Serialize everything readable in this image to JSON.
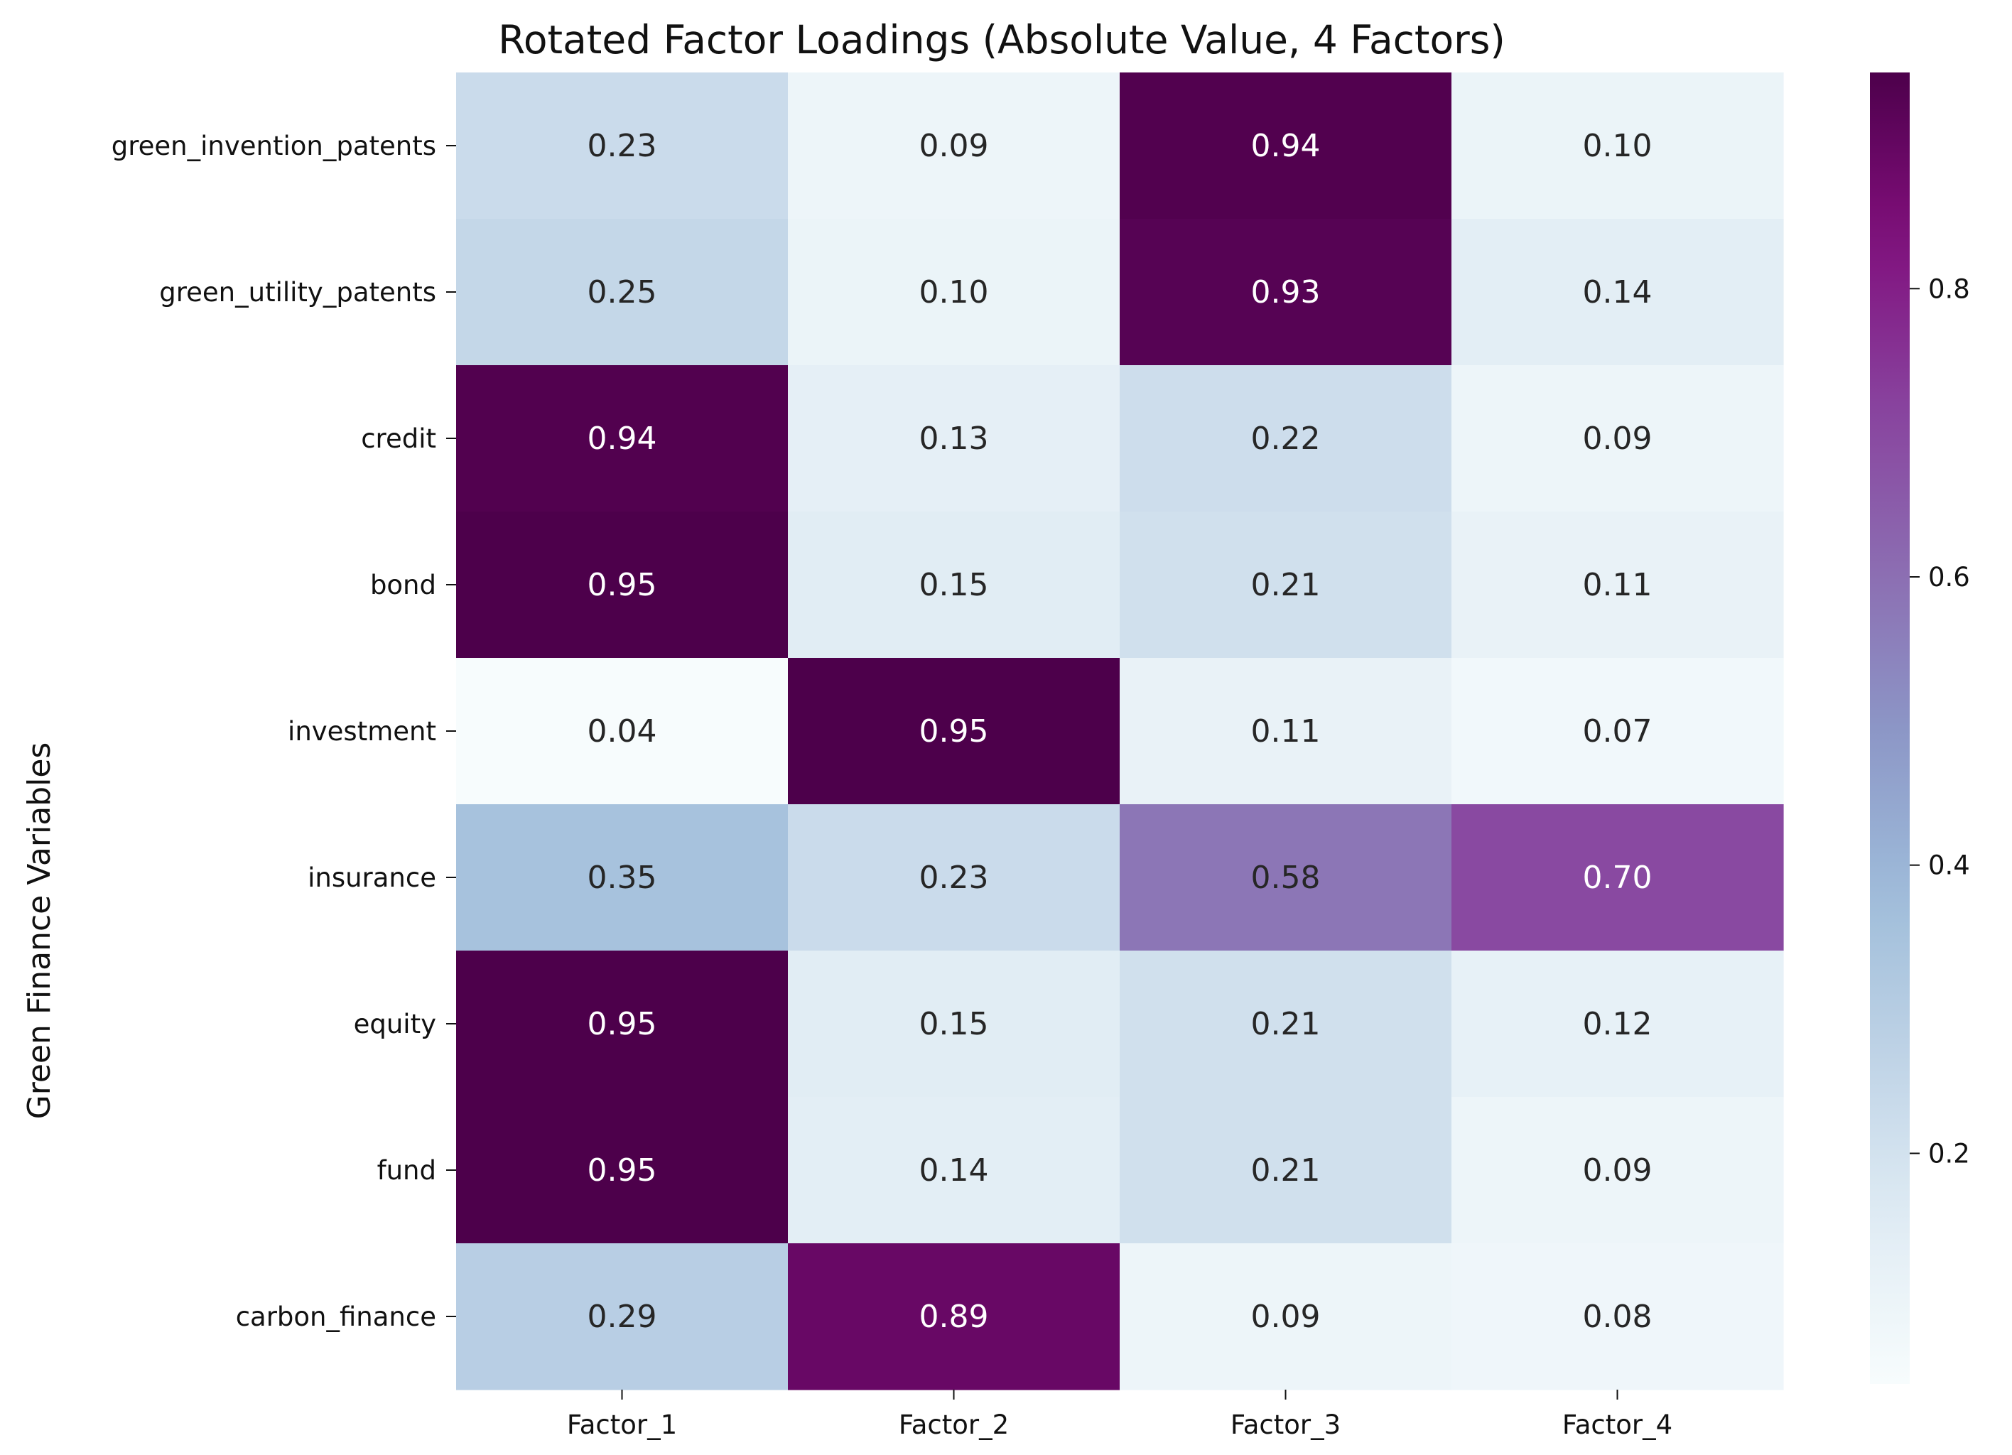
{
  "chart_data": {
    "type": "heatmap",
    "title": "Rotated Factor Loadings (Absolute Value, 4 Factors)",
    "xlabel": "",
    "ylabel": "Green Finance Variables",
    "columns": [
      "Factor_1",
      "Factor_2",
      "Factor_3",
      "Factor_4"
    ],
    "rows": [
      "green_invention_patents",
      "green_utility_patents",
      "credit",
      "bond",
      "investment",
      "insurance",
      "equity",
      "fund",
      "carbon_finance"
    ],
    "values": [
      [
        0.23,
        0.09,
        0.94,
        0.1
      ],
      [
        0.25,
        0.1,
        0.93,
        0.14
      ],
      [
        0.94,
        0.13,
        0.22,
        0.09
      ],
      [
        0.95,
        0.15,
        0.21,
        0.11
      ],
      [
        0.04,
        0.95,
        0.11,
        0.07
      ],
      [
        0.35,
        0.23,
        0.58,
        0.7
      ],
      [
        0.95,
        0.15,
        0.21,
        0.12
      ],
      [
        0.95,
        0.14,
        0.21,
        0.09
      ],
      [
        0.29,
        0.89,
        0.09,
        0.08
      ]
    ],
    "annotation_format": "0.00",
    "colormap": "BuPu",
    "colorbar": {
      "range": [
        0.04,
        0.95
      ],
      "ticks": [
        0.2,
        0.4,
        0.6,
        0.8
      ],
      "tick_labels": [
        "0.2",
        "0.4",
        "0.6",
        "0.8"
      ],
      "placement": "right"
    },
    "colors": {
      "low": "#f7fcfd",
      "mid": "#8c96c6",
      "high": "#4d004b"
    }
  }
}
